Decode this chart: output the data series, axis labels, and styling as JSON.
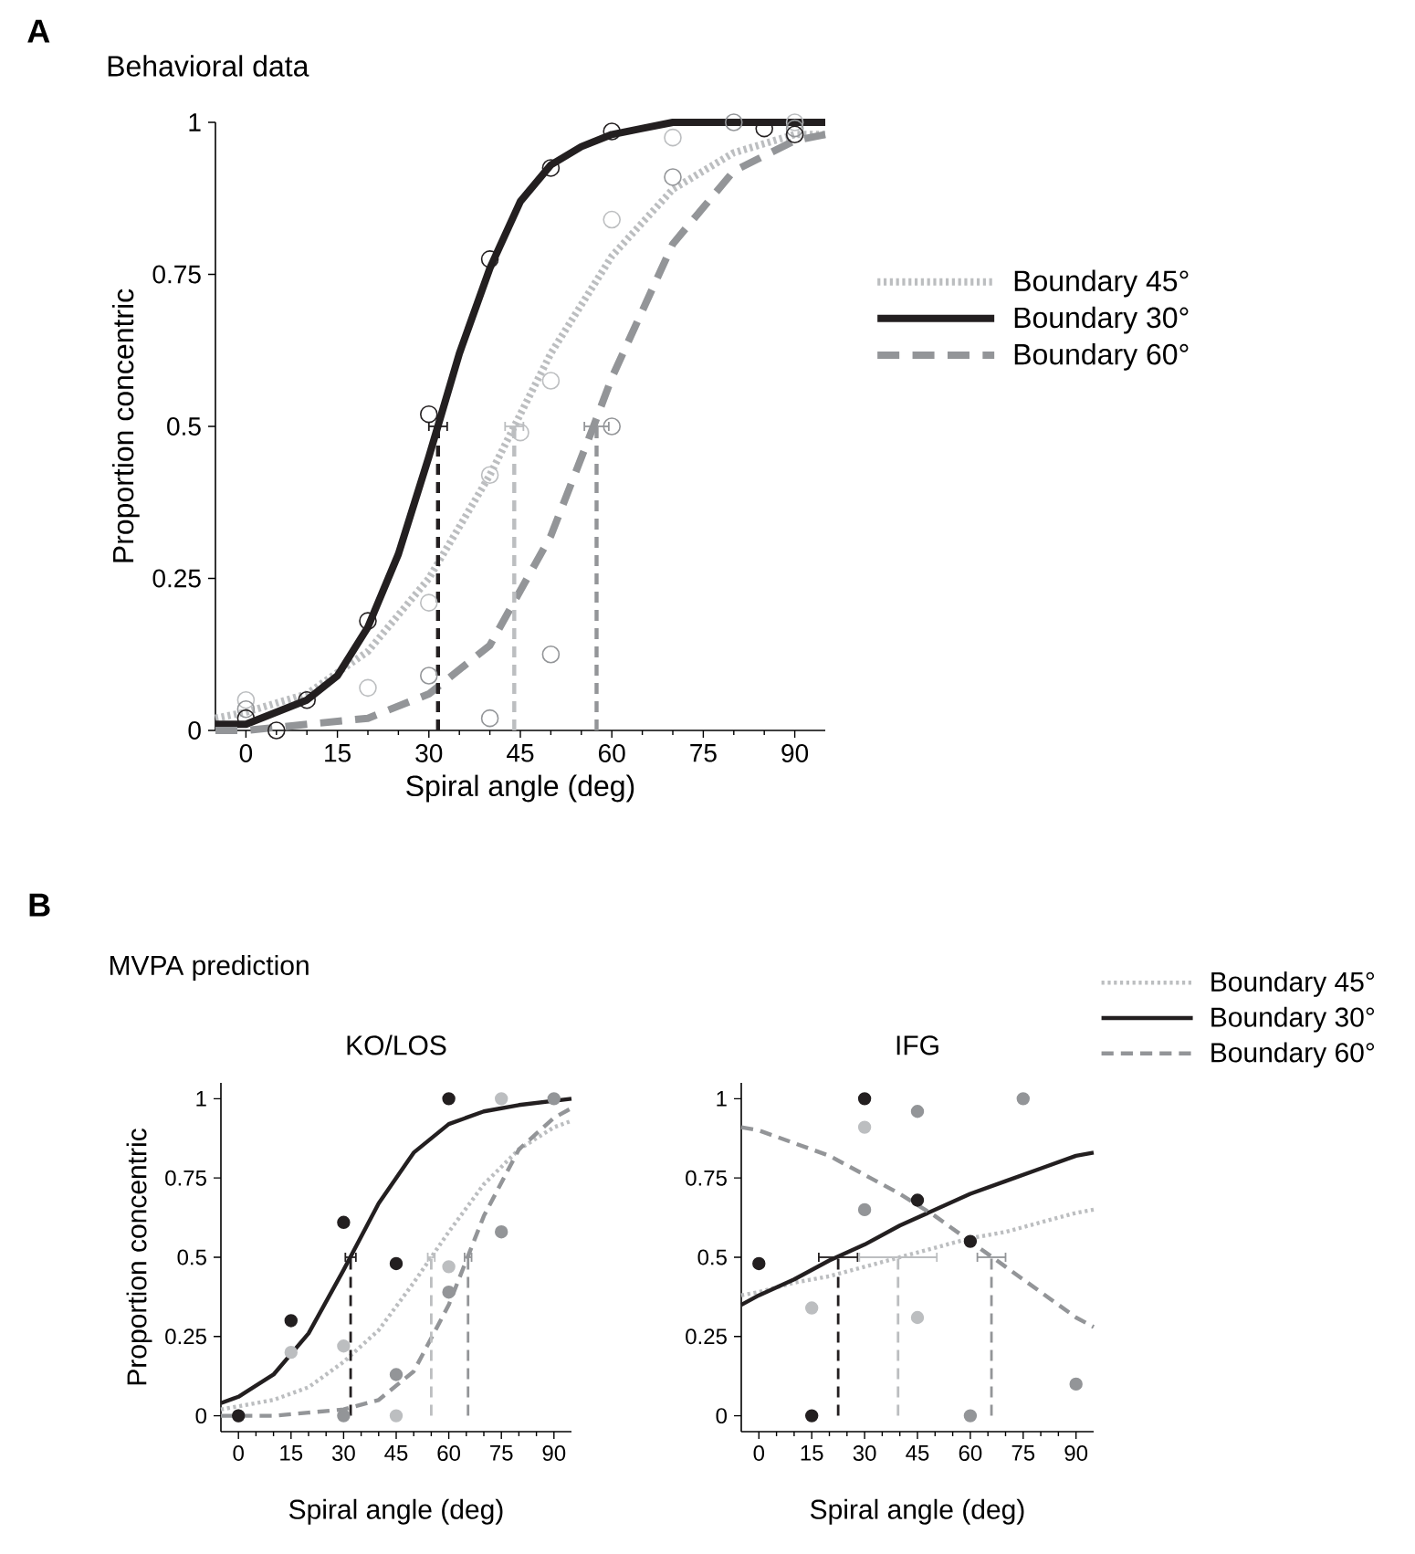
{
  "chart_data": [
    {
      "type": "line",
      "title": "Behavioral data",
      "xlabel": "Spiral angle (deg)",
      "ylabel": "Proportion concentric",
      "annotations": [
        "A"
      ],
      "xlim": [
        -5,
        95
      ],
      "ylim": [
        0,
        1
      ],
      "xticks": [
        0,
        15,
        30,
        45,
        60,
        75,
        90
      ],
      "yticks": [
        0,
        0.25,
        0.5,
        0.75,
        1
      ],
      "legend": "right",
      "series": [
        {
          "name": "Boundary 45°",
          "line_style": "dotted",
          "color": "#bcbec0",
          "x": [
            -5,
            0,
            10,
            20,
            30,
            40,
            44,
            50,
            60,
            70,
            80,
            90,
            95
          ],
          "values": [
            0.02,
            0.03,
            0.06,
            0.13,
            0.25,
            0.42,
            0.5,
            0.62,
            0.78,
            0.89,
            0.95,
            0.98,
            0.98
          ]
        },
        {
          "name": "Boundary 30°",
          "line_style": "solid",
          "color": "#231f20",
          "x": [
            -5,
            0,
            5,
            10,
            15,
            20,
            25,
            30,
            35,
            40,
            45,
            50,
            55,
            60,
            65,
            70,
            80,
            95
          ],
          "values": [
            0.01,
            0.01,
            0.03,
            0.05,
            0.09,
            0.17,
            0.29,
            0.45,
            0.62,
            0.76,
            0.87,
            0.93,
            0.96,
            0.98,
            0.99,
            1.0,
            1.0,
            1.0
          ]
        },
        {
          "name": "Boundary 60°",
          "line_style": "dashed",
          "color": "#939598",
          "x": [
            -5,
            0,
            10,
            20,
            30,
            40,
            50,
            57,
            60,
            70,
            80,
            90,
            95
          ],
          "values": [
            0,
            0,
            0.01,
            0.02,
            0.06,
            0.14,
            0.32,
            0.5,
            0.58,
            0.8,
            0.92,
            0.97,
            0.98
          ]
        },
        {
          "line_style": "dashed",
          "color": "#231f20",
          "x": [
            31.5,
            31.5
          ],
          "values": [
            0,
            0.5
          ],
          "xerrors": [
            null,
            1.5
          ]
        },
        {
          "line_style": "dashed",
          "color": "#bcbec0",
          "x": [
            44,
            44
          ],
          "values": [
            0,
            0.5
          ],
          "xerrors": [
            null,
            1.5
          ]
        },
        {
          "line_style": "dashed",
          "color": "#939598",
          "x": [
            57.5,
            57.5
          ],
          "values": [
            0,
            0.5
          ],
          "xerrors": [
            null,
            2
          ]
        },
        {
          "type": "scatter",
          "marker": "circle",
          "color": "#bcbec0",
          "x": [
            0,
            20,
            30,
            40,
            45,
            50,
            60,
            70,
            90
          ],
          "values": [
            0.05,
            0.07,
            0.21,
            0.42,
            0.49,
            0.575,
            0.84,
            0.975,
            1.0
          ]
        },
        {
          "type": "scatter",
          "marker": "circle",
          "color": "#939598",
          "x": [
            0,
            30,
            40,
            50,
            60,
            70,
            80,
            90
          ],
          "values": [
            0.035,
            0.09,
            0.02,
            0.125,
            0.5,
            0.91,
            1.0,
            0.99
          ]
        },
        {
          "type": "scatter",
          "marker": "circle",
          "color": "#231f20",
          "x": [
            0,
            5,
            10,
            20,
            30,
            40,
            50,
            60,
            85,
            90
          ],
          "values": [
            0.02,
            0,
            0.05,
            0.18,
            0.52,
            0.775,
            0.925,
            0.985,
            0.99,
            0.98
          ]
        }
      ]
    },
    {
      "type": "line",
      "title": "KO/LOS",
      "xlabel": "Spiral angle (deg)",
      "ylabel": "Proportion concentric",
      "annotations": [
        "B",
        "MVPA prediction"
      ],
      "xlim": [
        -5,
        95
      ],
      "ylim": [
        -0.05,
        1.05
      ],
      "xticks": [
        0,
        15,
        30,
        45,
        60,
        75,
        90
      ],
      "yticks": [
        0,
        0.25,
        0.5,
        0.75,
        1
      ],
      "series": [
        {
          "line_style": "dotted",
          "color": "#bcbec0",
          "x": [
            -5,
            0,
            10,
            20,
            30,
            40,
            50,
            60,
            70,
            80,
            90,
            95
          ],
          "values": [
            0.02,
            0.03,
            0.05,
            0.09,
            0.17,
            0.27,
            0.42,
            0.58,
            0.73,
            0.84,
            0.91,
            0.93
          ]
        },
        {
          "line_style": "solid",
          "color": "#231f20",
          "x": [
            -5,
            0,
            10,
            20,
            30,
            40,
            50,
            60,
            70,
            80,
            95
          ],
          "values": [
            0.04,
            0.06,
            0.13,
            0.26,
            0.46,
            0.67,
            0.83,
            0.92,
            0.96,
            0.98,
            1.0
          ]
        },
        {
          "line_style": "dashed",
          "color": "#939598",
          "x": [
            -5,
            0,
            10,
            20,
            30,
            40,
            50,
            60,
            70,
            80,
            90,
            95
          ],
          "values": [
            0,
            0,
            0,
            0.01,
            0.02,
            0.05,
            0.14,
            0.35,
            0.63,
            0.84,
            0.94,
            0.97
          ]
        },
        {
          "line_style": "dashed",
          "color": "#231f20",
          "x": [
            32,
            32
          ],
          "values": [
            0,
            0.5
          ],
          "xerrors": [
            null,
            1.5
          ]
        },
        {
          "line_style": "dashed",
          "color": "#bcbec0",
          "x": [
            55,
            55
          ],
          "values": [
            0,
            0.5
          ],
          "xerrors": [
            null,
            1
          ]
        },
        {
          "line_style": "dashed",
          "color": "#939598",
          "x": [
            65.5,
            65.5
          ],
          "values": [
            0,
            0.5
          ],
          "xerrors": [
            null,
            1
          ]
        },
        {
          "type": "scatter",
          "marker": "circle",
          "color": "#bcbec0",
          "x": [
            15,
            30,
            45,
            60,
            75
          ],
          "values": [
            0.2,
            0.22,
            0,
            0.47,
            1.0
          ]
        },
        {
          "type": "scatter",
          "marker": "circle",
          "color": "#939598",
          "x": [
            0,
            30,
            45,
            60,
            75,
            90
          ],
          "values": [
            0,
            0,
            0.13,
            0.39,
            0.58,
            1.0
          ]
        },
        {
          "type": "scatter",
          "marker": "circle",
          "color": "#231f20",
          "x": [
            0,
            15,
            30,
            45,
            60
          ],
          "values": [
            0,
            0.3,
            0.61,
            0.48,
            1.0
          ]
        }
      ]
    },
    {
      "type": "line",
      "title": "IFG",
      "xlabel": "Spiral angle (deg)",
      "legend": "top right",
      "xlim": [
        -5,
        95
      ],
      "ylim": [
        -0.05,
        1.05
      ],
      "xticks": [
        0,
        15,
        30,
        45,
        60,
        75,
        90
      ],
      "yticks": [
        0,
        0.25,
        0.5,
        0.75,
        1
      ],
      "series": [
        {
          "name": "Boundary 45°",
          "line_style": "dotted",
          "color": "#bcbec0",
          "x": [
            -5,
            0,
            10,
            20,
            30,
            40,
            50,
            60,
            70,
            80,
            90,
            95
          ],
          "values": [
            0.38,
            0.39,
            0.42,
            0.44,
            0.47,
            0.5,
            0.53,
            0.56,
            0.58,
            0.61,
            0.64,
            0.65
          ]
        },
        {
          "name": "Boundary 30°",
          "line_style": "solid",
          "color": "#231f20",
          "x": [
            -5,
            0,
            10,
            20,
            30,
            40,
            50,
            60,
            70,
            80,
            90,
            95
          ],
          "values": [
            0.35,
            0.38,
            0.43,
            0.49,
            0.54,
            0.6,
            0.65,
            0.7,
            0.74,
            0.78,
            0.82,
            0.83
          ]
        },
        {
          "name": "Boundary 60°",
          "line_style": "dashed",
          "color": "#939598",
          "x": [
            -5,
            0,
            10,
            20,
            30,
            40,
            50,
            60,
            70,
            80,
            90,
            95
          ],
          "values": [
            0.91,
            0.9,
            0.86,
            0.82,
            0.76,
            0.7,
            0.63,
            0.55,
            0.47,
            0.39,
            0.31,
            0.28
          ]
        },
        {
          "line_style": "dashed",
          "color": "#231f20",
          "x": [
            22.5,
            22.5
          ],
          "values": [
            0,
            0.5
          ],
          "xerrors": [
            null,
            5.5
          ]
        },
        {
          "line_style": "dashed",
          "color": "#bcbec0",
          "x": [
            39.5,
            39.5
          ],
          "values": [
            0,
            0.5
          ],
          "xerrors": [
            null,
            11
          ]
        },
        {
          "line_style": "dashed",
          "color": "#939598",
          "x": [
            66,
            66
          ],
          "values": [
            0,
            0.5
          ],
          "xerrors": [
            null,
            4
          ]
        },
        {
          "type": "scatter",
          "marker": "circle",
          "color": "#bcbec0",
          "x": [
            15,
            30,
            45
          ],
          "values": [
            0.34,
            0.91,
            0.31
          ]
        },
        {
          "type": "scatter",
          "marker": "circle",
          "color": "#939598",
          "x": [
            30,
            45,
            60,
            75,
            90
          ],
          "values": [
            0.65,
            0.96,
            0,
            1.0,
            0.1
          ]
        },
        {
          "type": "scatter",
          "marker": "circle",
          "color": "#231f20",
          "x": [
            0,
            15,
            30,
            45,
            60
          ],
          "values": [
            0.48,
            0,
            1.0,
            0.68,
            0.55
          ]
        }
      ]
    }
  ]
}
